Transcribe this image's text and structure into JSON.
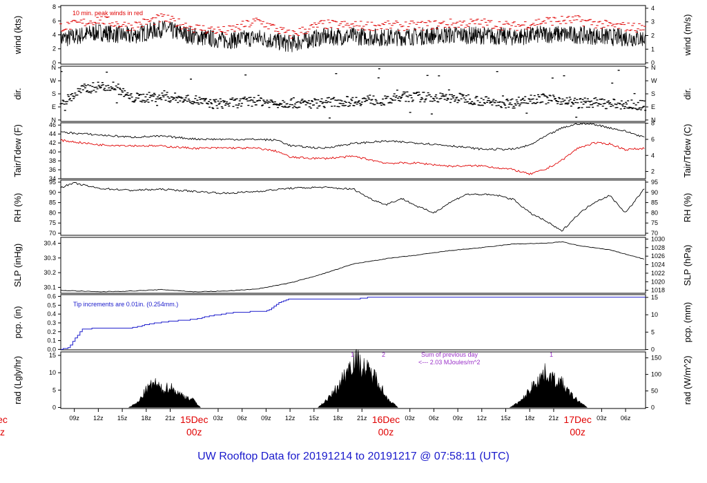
{
  "title": "UW Rooftop Data for 20191214  to  20191217 @ 07:58:11  (UTC)",
  "x_axis": {
    "hour_ticks": [
      "09z",
      "12z",
      "15z",
      "18z",
      "21z",
      "03z",
      "06z",
      "09z",
      "12z",
      "15z",
      "18z",
      "21z",
      "03z",
      "06z",
      "09z",
      "12z",
      "15z",
      "18z",
      "21z",
      "03z",
      "06z"
    ],
    "hour_values": [
      9,
      12,
      15,
      18,
      21,
      27,
      30,
      33,
      36,
      39,
      42,
      45,
      51,
      54,
      57,
      60,
      63,
      66,
      69,
      75,
      78
    ],
    "day_markers": [
      {
        "date": "15Dec",
        "time": "00z",
        "hour": 24
      },
      {
        "date": "16Dec",
        "time": "00z",
        "hour": 48
      },
      {
        "date": "17Dec",
        "time": "00z",
        "hour": 72
      },
      {
        "date": "ec",
        "time": "z",
        "hour": 0
      }
    ],
    "range_hours": [
      7.3,
      80.5
    ]
  },
  "panels": {
    "wind": {
      "left_label": "wind (kts)",
      "right_label": "wind (m/s)",
      "left_ticks": [
        "0",
        "2",
        "4",
        "6",
        "8"
      ],
      "right_ticks": [
        "0",
        "1",
        "2",
        "3",
        "4"
      ],
      "annotation": "10 min. peak winds in red"
    },
    "dir": {
      "left_label": "dir.",
      "right_label": "dir.",
      "left_ticks": [
        "N",
        "E",
        "S",
        "W",
        "N"
      ],
      "right_ticks": [
        "N",
        "E",
        "S",
        "W",
        "N"
      ]
    },
    "temp": {
      "left_label": "Tair/Tdew (F)",
      "right_label": "Tair/Tdew (C)",
      "left_ticks": [
        "34",
        "36",
        "38",
        "40",
        "42",
        "44",
        "46"
      ],
      "right_ticks": [
        "2",
        "4",
        "6",
        "8"
      ]
    },
    "rh": {
      "left_label": "RH (%)",
      "right_label": "RH (%)",
      "left_ticks": [
        "70",
        "75",
        "80",
        "85",
        "90",
        "95"
      ],
      "right_ticks": [
        "70",
        "75",
        "80",
        "85",
        "90",
        "95"
      ]
    },
    "slp": {
      "left_label": "SLP (inHg)",
      "right_label": "SLP (hPa)",
      "left_ticks": [
        "30.1",
        "30.2",
        "30.3",
        "30.4"
      ],
      "right_ticks": [
        "1018",
        "1020",
        "1022",
        "1024",
        "1026",
        "1028",
        "1030"
      ]
    },
    "pcp": {
      "left_label": "pcp. (in)",
      "right_label": "pcp. (mm)",
      "left_ticks": [
        "0.0",
        "0.1",
        "0.2",
        "0.3",
        "0.4",
        "0.5",
        "0.6"
      ],
      "right_ticks": [
        "0",
        "5",
        "10",
        "15"
      ],
      "annotation": "Tip increments are 0.01in. (0.254mm.)"
    },
    "rad": {
      "left_label": "rad (Lgly/hr)",
      "right_label": "rad (W/m^2)",
      "left_ticks": [
        "0",
        "5",
        "10",
        "15"
      ],
      "right_ticks": [
        "0",
        "50",
        "100",
        "150"
      ],
      "annotation_1": "Sum of previous day",
      "annotation_2": "<--- 2.03 MJoules/m^2",
      "daily_marks": [
        "1",
        "2",
        "1"
      ]
    }
  },
  "colors": {
    "temp": "#000000",
    "dew": "#e00000",
    "peak": "#e00000",
    "pcp": "#1a1acc",
    "annotation": "#9a30c8"
  },
  "chart_data": [
    {
      "type": "line",
      "name": "wind",
      "ylabel": "wind (kts)",
      "ylim": [
        0,
        8
      ],
      "x": [
        8,
        12,
        16,
        20,
        24,
        28,
        32,
        36,
        40,
        44,
        48,
        52,
        56,
        60,
        64,
        68,
        72,
        76,
        80
      ],
      "series": [
        {
          "name": "wind",
          "values": [
            3.5,
            4.4,
            3.8,
            4.9,
            3.8,
            3.2,
            3.6,
            2.7,
            3.7,
            3.8,
            3.6,
            3.8,
            4.0,
            3.9,
            3.7,
            4.1,
            4.0,
            3.7,
            3.5
          ]
        },
        {
          "name": "10 min. peak winds",
          "values": [
            5.2,
            6.2,
            5.2,
            6.4,
            5.0,
            4.5,
            6.0,
            4.0,
            5.5,
            5.3,
            5.3,
            5.3,
            5.6,
            5.7,
            5.2,
            6.0,
            6.1,
            5.3,
            5.0
          ]
        }
      ]
    },
    {
      "type": "scatter",
      "name": "dir",
      "ylim": [
        0,
        360
      ],
      "x": [
        8,
        10,
        12,
        14,
        16,
        18,
        20,
        22,
        24,
        26,
        28,
        30,
        32,
        34,
        36,
        38,
        40,
        42,
        44,
        46,
        48,
        50,
        52,
        54,
        56,
        58,
        60,
        62,
        64,
        66,
        68,
        70,
        72,
        74,
        76,
        78,
        80
      ],
      "values": [
        135,
        210,
        230,
        235,
        150,
        155,
        160,
        150,
        140,
        110,
        115,
        120,
        135,
        115,
        120,
        110,
        120,
        125,
        130,
        140,
        130,
        160,
        160,
        155,
        150,
        150,
        130,
        120,
        115,
        150,
        145,
        140,
        115,
        120,
        110,
        105,
        100
      ]
    },
    {
      "type": "line",
      "name": "temperature",
      "ylim": [
        34,
        46
      ],
      "x": [
        7.3,
        12,
        16,
        20,
        24,
        28,
        32,
        34.5,
        36,
        40,
        44,
        48,
        52,
        56,
        60,
        64,
        66,
        68,
        70,
        72,
        74,
        76,
        78,
        80.5
      ],
      "series": [
        {
          "name": "Tair",
          "values": [
            44.4,
            43.8,
            43.3,
            43.5,
            42.9,
            42.8,
            42.8,
            42.6,
            41.4,
            40.8,
            41.9,
            42.4,
            42.0,
            41.4,
            40.6,
            40.6,
            41.5,
            43.5,
            45.3,
            46.3,
            46.2,
            45.4,
            44.6,
            43.2
          ]
        },
        {
          "name": "Tdew",
          "values": [
            42.6,
            41.6,
            41.4,
            41.3,
            40.8,
            40.9,
            40.8,
            40.1,
            38.8,
            38.5,
            39.0,
            37.5,
            37.5,
            36.8,
            36.9,
            36.0,
            35.0,
            36.1,
            38.1,
            40.8,
            42.0,
            41.8,
            40.5,
            40.8
          ]
        }
      ]
    },
    {
      "type": "line",
      "name": "RH",
      "ylabel": "RH (%)",
      "ylim": [
        70,
        95
      ],
      "x": [
        7.3,
        9,
        12,
        16,
        20,
        24,
        28,
        32,
        36,
        40,
        44,
        46,
        48,
        50,
        52,
        54,
        56,
        58,
        60,
        62,
        64,
        66,
        68,
        70,
        72,
        74,
        76,
        78,
        80.5
      ],
      "values": [
        92.5,
        94.5,
        92,
        91,
        91.5,
        90.5,
        89.5,
        90.5,
        92,
        92.5,
        91.5,
        87,
        84,
        87,
        83,
        80,
        85,
        89,
        89,
        88.5,
        86.5,
        80,
        76,
        71,
        79,
        85,
        88.5,
        80,
        92.5
      ]
    },
    {
      "type": "line",
      "name": "SLP",
      "ylabel": "SLP (inHg)",
      "ylim": [
        30.06,
        30.44
      ],
      "x": [
        7.3,
        12,
        16,
        20,
        24,
        28,
        32,
        36,
        40,
        44,
        48,
        52,
        56,
        60,
        64,
        68,
        70,
        72,
        76,
        80.5
      ],
      "values": [
        30.08,
        30.07,
        30.075,
        30.085,
        30.07,
        30.075,
        30.09,
        30.13,
        30.19,
        30.26,
        30.295,
        30.32,
        30.35,
        30.37,
        30.395,
        30.4,
        30.41,
        30.385,
        30.355,
        30.29
      ]
    },
    {
      "type": "area",
      "name": "precipitation",
      "ylabel": "pcp. (in)",
      "ylim": [
        0,
        0.6
      ],
      "x": [
        7.3,
        8.3,
        9,
        10,
        12,
        16,
        18,
        20,
        24,
        26,
        29,
        33,
        34,
        35,
        36,
        44,
        46,
        50,
        80.5
      ],
      "values": [
        0,
        0.02,
        0.12,
        0.23,
        0.24,
        0.24,
        0.28,
        0.31,
        0.34,
        0.38,
        0.42,
        0.43,
        0.49,
        0.55,
        0.57,
        0.57,
        0.59,
        0.59,
        0.59
      ]
    },
    {
      "type": "area",
      "name": "radiation",
      "ylabel": "rad (Lgly/hr)",
      "ylim": [
        0,
        16
      ],
      "x": [
        15.8,
        17,
        18,
        19,
        20,
        21,
        22,
        23,
        24,
        24.8,
        39.5,
        41,
        42,
        43,
        44,
        45,
        46,
        47,
        48,
        49.5,
        63.5,
        65,
        66,
        67,
        68,
        69,
        70,
        71,
        72,
        73.2
      ],
      "values": [
        0,
        1.5,
        5,
        7,
        5,
        6,
        4,
        3,
        2,
        0,
        0,
        3,
        6,
        10,
        14,
        12,
        10,
        8,
        3,
        0,
        0,
        2,
        5,
        8,
        10,
        8,
        7,
        4,
        2,
        0
      ]
    }
  ]
}
